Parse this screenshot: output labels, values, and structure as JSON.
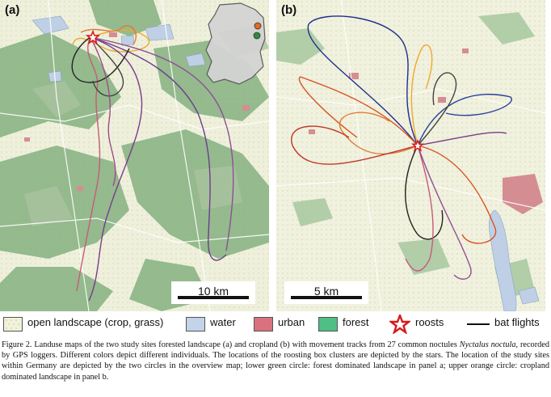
{
  "panel_a": {
    "label": "(a)",
    "scale_label": "10 km"
  },
  "panel_b": {
    "label": "(b)",
    "scale_label": "5 km"
  },
  "legend": {
    "open_landscape": "open landscape (crop, grass)",
    "water": "water",
    "urban": "urban",
    "forest": "forest",
    "roosts": "roosts",
    "bat_flights": "bat flights"
  },
  "colors": {
    "open_landscape": "#f1f1dc",
    "water": "#c3d3e8",
    "urban": "#d9727e",
    "forest": "#4fbf85",
    "forest_map": "#7fae7a",
    "roost_star": "#d7191c"
  },
  "icons": [
    "star-icon",
    "germany-outline-icon"
  ],
  "caption": {
    "text1": "Figure 2. Landuse maps of the two study sites forested landscape (a) and cropland (b) with movement tracks from 27 common noctules ",
    "italic": "Nyctalus noctula",
    "text2": ", recorded by GPS loggers. Different colors depict different individuals. The locations of the roosting box clusters are depicted by the stars. The location of the study sites within Germany are depicted by the two circles in the overview map; lower green circle: forest dominated landscape in panel a; upper orange circle: cropland dominated landscape in panel b."
  }
}
